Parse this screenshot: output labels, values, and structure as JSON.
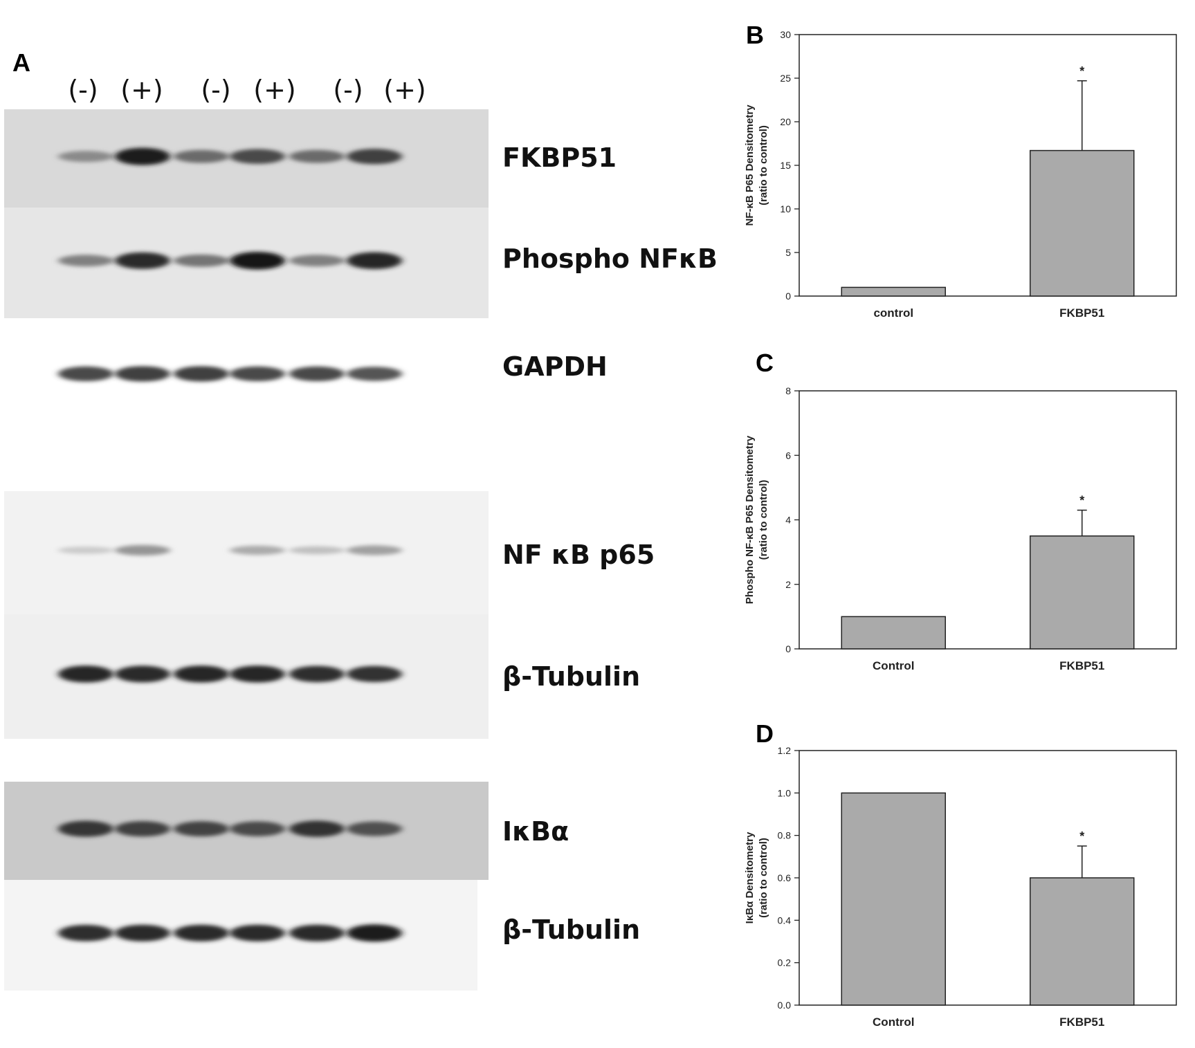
{
  "panels": {
    "a_letter": "A",
    "b_letter": "B",
    "c_letter": "C",
    "d_letter": "D"
  },
  "lanes": [
    "(-)",
    "(+)",
    "(-)",
    "(+)",
    "(-)",
    "(+)"
  ],
  "blots": [
    {
      "label": "FKBP51",
      "band_intensity": [
        0.45,
        0.95,
        0.6,
        0.75,
        0.6,
        0.8
      ]
    },
    {
      "label": "Phospho NFκB",
      "band_intensity": [
        0.5,
        0.9,
        0.55,
        0.98,
        0.5,
        0.92
      ]
    },
    {
      "label": "GAPDH",
      "band_intensity": [
        0.75,
        0.8,
        0.8,
        0.75,
        0.75,
        0.7
      ]
    },
    {
      "label": "NF κB p65",
      "band_intensity": [
        0.15,
        0.4,
        0.0,
        0.3,
        0.2,
        0.35
      ]
    },
    {
      "label": "β-Tubulin",
      "band_intensity": [
        0.92,
        0.9,
        0.92,
        0.92,
        0.88,
        0.86
      ]
    },
    {
      "label": "IκBα",
      "band_intensity": [
        0.85,
        0.8,
        0.78,
        0.76,
        0.86,
        0.72
      ]
    },
    {
      "label": "β-Tubulin",
      "band_intensity": [
        0.88,
        0.9,
        0.9,
        0.9,
        0.9,
        0.95
      ]
    }
  ],
  "chart_data": [
    {
      "type": "bar",
      "panel": "B",
      "categories": [
        "control",
        "FKBP51"
      ],
      "values": [
        1.0,
        16.7
      ],
      "errors": [
        0,
        8.0
      ],
      "annotations": [
        "",
        "*"
      ],
      "ylabel": "NF-κB P65 Densitometry (ratio to control)",
      "ylabel_lines": [
        "NF-κB P65 Densitometry",
        "(ratio to control)"
      ],
      "ylim": [
        0,
        30
      ],
      "yticks": [
        0,
        5,
        10,
        15,
        20,
        25,
        30
      ],
      "ytick_labels": [
        "0",
        "5",
        "10",
        "15",
        "20",
        "25",
        "30"
      ],
      "bar_color": "#aaaaaa"
    },
    {
      "type": "bar",
      "panel": "C",
      "categories": [
        "Control",
        "FKBP51"
      ],
      "values": [
        1.0,
        3.5
      ],
      "errors": [
        0,
        0.8
      ],
      "annotations": [
        "",
        "*"
      ],
      "ylabel": "Phospho NF-κB P65 Densitometry (ratio to control)",
      "ylabel_lines": [
        "Phospho NF-κB P65 Densitometry",
        "(ratio to control)"
      ],
      "ylim": [
        0,
        8
      ],
      "yticks": [
        0,
        2,
        4,
        6,
        8
      ],
      "ytick_labels": [
        "0",
        "2",
        "4",
        "6",
        "8"
      ],
      "bar_color": "#aaaaaa"
    },
    {
      "type": "bar",
      "panel": "D",
      "categories": [
        "Control",
        "FKBP51"
      ],
      "values": [
        1.0,
        0.6
      ],
      "errors": [
        0,
        0.15
      ],
      "annotations": [
        "",
        "*"
      ],
      "ylabel": "IκBα Densitometry (ratio to control)",
      "ylabel_lines": [
        "IκBα Densitometry",
        "(ratio to control)"
      ],
      "ylim": [
        0,
        1.2
      ],
      "yticks": [
        0,
        0.2,
        0.4,
        0.6,
        0.8,
        1.0,
        1.2
      ],
      "ytick_labels": [
        "0.0",
        "0.2",
        "0.4",
        "0.6",
        "0.8",
        "1.0",
        "1.2"
      ],
      "bar_color": "#aaaaaa"
    }
  ]
}
